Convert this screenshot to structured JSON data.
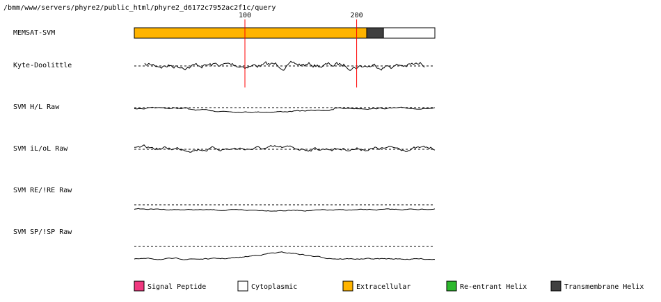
{
  "path": "/bmm/www/servers/phyre2/public_html/phyre2_d6172c7952ac2f1c/query",
  "ruler": {
    "length": 270,
    "ticks": [
      100,
      200
    ]
  },
  "tracks": [
    "MEMSAT-SVM",
    "Kyte-Doolittle",
    "SVM H/L Raw",
    "SVM iL/oL Raw",
    "SVM RE/!RE Raw",
    "SVM SP/!SP Raw"
  ],
  "segments": [
    {
      "legend": 2,
      "start": 1,
      "end": 209
    },
    {
      "legend": 4,
      "start": 209,
      "end": 224
    },
    {
      "legend": 1,
      "start": 224,
      "end": 270
    }
  ],
  "legend": [
    {
      "label": "Signal Peptide",
      "color": "#f0387f"
    },
    {
      "label": "Cytoplasmic",
      "color": "#ffffff"
    },
    {
      "label": "Extracellular",
      "color": "#ffb400"
    },
    {
      "label": "Re-entrant Helix",
      "color": "#2db82d"
    },
    {
      "label": "Transmembrane Helix",
      "color": "#404040"
    }
  ]
}
